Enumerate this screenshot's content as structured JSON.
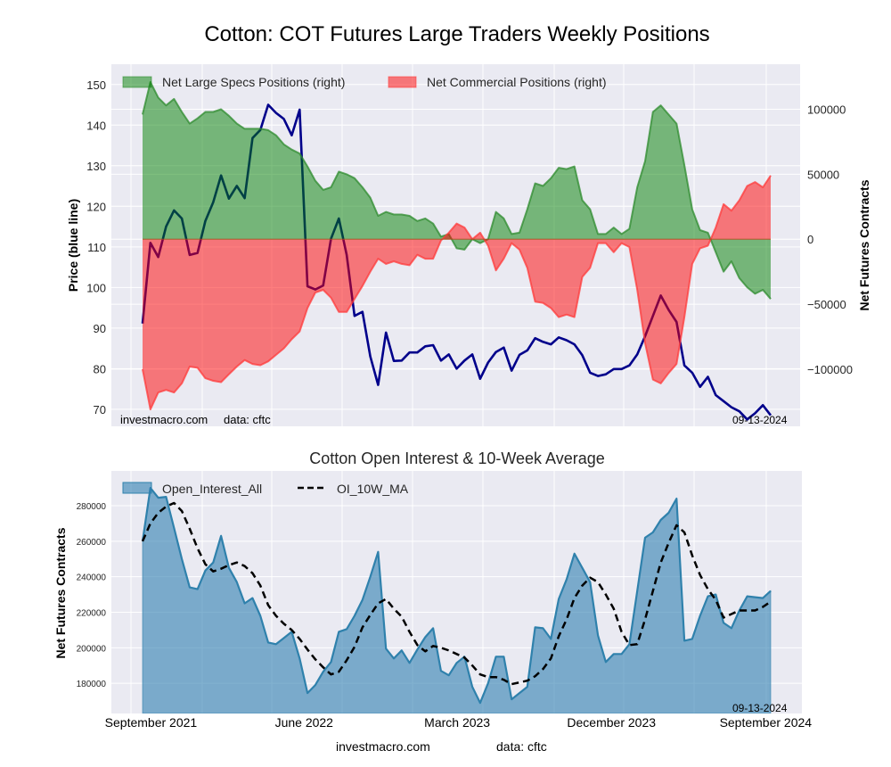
{
  "title": "Cotton: COT Futures Large Traders Weekly Positions",
  "source": "investmacro.com",
  "data_credit": "data: cftc",
  "report_date": "09-13-2024",
  "colors": {
    "plot_bg": "#eaeaf2",
    "grid": "#ffffff",
    "price_line": "#00008b",
    "specs_fill": "#008000",
    "specs_line": "#2e8b2e",
    "commercial_fill": "#ff0000",
    "commercial_line": "#ff3a3a",
    "oi_fill": "#2e7fb0",
    "oi_line": "#2f81ac",
    "ma_line": "#000000"
  },
  "chart_data": [
    {
      "type": "area+line",
      "title": "Cotton: COT Futures Large Traders Weekly Positions",
      "ylabel": "Price (blue line)",
      "y2label": "Net Futures Contracts",
      "ylim": [
        65.8,
        155
      ],
      "y2lim": [
        -144000,
        134700
      ],
      "yticks": [
        70,
        80,
        90,
        100,
        110,
        120,
        130,
        140,
        150
      ],
      "y2ticks": [
        -100000,
        -50000,
        0,
        50000,
        100000
      ],
      "grid": true,
      "legend_position": "top-left",
      "x": [
        "2021-08-17",
        "2021-08-31",
        "2021-09-14",
        "2021-09-28",
        "2021-10-12",
        "2021-10-26",
        "2021-11-09",
        "2021-11-23",
        "2021-12-07",
        "2021-12-21",
        "2022-01-04",
        "2022-01-18",
        "2022-02-01",
        "2022-02-15",
        "2022-03-01",
        "2022-03-15",
        "2022-03-29",
        "2022-04-12",
        "2022-04-26",
        "2022-05-10",
        "2022-05-24",
        "2022-06-07",
        "2022-06-21",
        "2022-07-05",
        "2022-07-19",
        "2022-08-02",
        "2022-08-16",
        "2022-08-30",
        "2022-09-13",
        "2022-09-27",
        "2022-10-11",
        "2022-10-25",
        "2022-11-08",
        "2022-11-22",
        "2022-12-06",
        "2022-12-20",
        "2023-01-03",
        "2023-01-17",
        "2023-01-31",
        "2023-02-14",
        "2023-02-28",
        "2023-03-14",
        "2023-03-28",
        "2023-04-11",
        "2023-04-25",
        "2023-05-09",
        "2023-05-23",
        "2023-06-06",
        "2023-06-20",
        "2023-07-04",
        "2023-07-18",
        "2023-08-01",
        "2023-08-15",
        "2023-08-29",
        "2023-09-12",
        "2023-09-26",
        "2023-10-10",
        "2023-10-24",
        "2023-11-07",
        "2023-11-21",
        "2023-12-05",
        "2023-12-19",
        "2024-01-02",
        "2024-01-16",
        "2024-01-30",
        "2024-02-13",
        "2024-02-27",
        "2024-03-12",
        "2024-03-26",
        "2024-04-09",
        "2024-04-23",
        "2024-05-07",
        "2024-05-21",
        "2024-06-04",
        "2024-06-18",
        "2024-07-02",
        "2024-07-16",
        "2024-07-30",
        "2024-08-13",
        "2024-08-27",
        "2024-09-10"
      ],
      "xticks": [
        {
          "date": "2021-09-01",
          "label": "September 2021"
        },
        {
          "date": "2022-06-01",
          "label": "June 2022"
        },
        {
          "date": "2023-03-01",
          "label": "March 2023"
        },
        {
          "date": "2023-12-01",
          "label": "December 2023"
        },
        {
          "date": "2024-09-01",
          "label": "September 2024"
        }
      ],
      "series": [
        {
          "name": "Net Large Specs Positions (right)",
          "axis": "right",
          "style": "fill",
          "values": [
            96000,
            121000,
            109000,
            103000,
            108000,
            98000,
            89000,
            93000,
            98000,
            98000,
            100000,
            95000,
            89000,
            85000,
            85000,
            85000,
            84000,
            80000,
            73000,
            69000,
            66000,
            56000,
            45000,
            38000,
            40000,
            52000,
            50000,
            47000,
            40000,
            32000,
            18000,
            21000,
            19000,
            19000,
            18000,
            14000,
            16000,
            12000,
            2000,
            4000,
            -7000,
            -8000,
            0,
            -3000,
            0,
            21000,
            16000,
            4000,
            5000,
            23000,
            43000,
            41000,
            47000,
            55000,
            54000,
            56000,
            30000,
            23000,
            4000,
            4000,
            9000,
            4000,
            8000,
            40000,
            60000,
            98000,
            103000,
            96000,
            89000,
            57000,
            23000,
            7000,
            5000,
            -10000,
            -25000,
            -17000,
            -30000,
            -37000,
            -42000,
            -39000,
            -46000
          ]
        },
        {
          "name": "Net Commercial Positions (right)",
          "axis": "right",
          "style": "fill",
          "values": [
            -100000,
            -131000,
            -118000,
            -116000,
            -118000,
            -111000,
            -98000,
            -99000,
            -107000,
            -109000,
            -110000,
            -104000,
            -98000,
            -93000,
            -96000,
            -97000,
            -94000,
            -89000,
            -84000,
            -77000,
            -71000,
            -53000,
            -41000,
            -39000,
            -45000,
            -56000,
            -56000,
            -46000,
            -36000,
            -25000,
            -15000,
            -19000,
            -17000,
            -19000,
            -20000,
            -12000,
            -15000,
            -15000,
            -1000,
            5000,
            12000,
            9000,
            0,
            5000,
            -5000,
            -24000,
            -15000,
            -3000,
            -8000,
            -22000,
            -48000,
            -49000,
            -53000,
            -60000,
            -58000,
            -60000,
            -29000,
            -22000,
            -3000,
            -3000,
            -10000,
            -3000,
            -6000,
            -39000,
            -80000,
            -108000,
            -111000,
            -103000,
            -96000,
            -60000,
            -19000,
            -7000,
            -5000,
            9000,
            27000,
            22000,
            30000,
            41000,
            44000,
            40000,
            49000
          ]
        },
        {
          "name": "Price",
          "axis": "left",
          "style": "line",
          "values": [
            91.1,
            111,
            107.5,
            115,
            119,
            117,
            108,
            108.5,
            116.4,
            121,
            127.6,
            121.9,
            125,
            122,
            136.8,
            138.8,
            145,
            143,
            141.5,
            137.5,
            143.8,
            100.3,
            99.5,
            100.5,
            112,
            117,
            108,
            93,
            94,
            83,
            76,
            88.9,
            81.9,
            82,
            84,
            84,
            85.5,
            85.8,
            82,
            83.5,
            80,
            82,
            83.5,
            77.5,
            81.5,
            84.1,
            85.2,
            79.5,
            83.4,
            84.5,
            87.5,
            86.6,
            86,
            87.7,
            87,
            86,
            83.3,
            79,
            78.2,
            78.6,
            79.9,
            79.9,
            80.8,
            83.5,
            88,
            93,
            98,
            94.5,
            91.5,
            80.8,
            79,
            75.5,
            78,
            73.5,
            72,
            70.5,
            69.5,
            67.5,
            69,
            71,
            68.5
          ]
        }
      ]
    },
    {
      "type": "area+line",
      "title": "Cotton Open Interest & 10-Week Average",
      "ylabel": "Net Futures Contracts",
      "ylim": [
        163000,
        299600
      ],
      "yticks": [
        180000,
        200000,
        220000,
        240000,
        260000,
        280000
      ],
      "grid": true,
      "legend_position": "top-left",
      "xticks": [
        {
          "date": "2021-09-01",
          "label": "September 2021"
        },
        {
          "date": "2022-06-01",
          "label": "June 2022"
        },
        {
          "date": "2023-03-01",
          "label": "March 2023"
        },
        {
          "date": "2023-12-01",
          "label": "December 2023"
        },
        {
          "date": "2024-09-01",
          "label": "September 2024"
        }
      ],
      "series": [
        {
          "name": "Open_Interest_All",
          "style": "fill",
          "values": [
            260000,
            290000,
            284500,
            285000,
            267500,
            250000,
            234000,
            233000,
            243500,
            248000,
            263000,
            245000,
            237000,
            225000,
            228000,
            218000,
            203000,
            202000,
            205500,
            209000,
            194000,
            174500,
            179000,
            186500,
            192000,
            209000,
            210500,
            218000,
            227000,
            240000,
            254000,
            199500,
            194000,
            198500,
            191500,
            199000,
            206000,
            211000,
            187000,
            184500,
            191500,
            195000,
            178000,
            169000,
            180000,
            195000,
            195000,
            171000,
            174500,
            178000,
            211500,
            211000,
            205000,
            227500,
            238500,
            253000,
            245000,
            237000,
            207000,
            192000,
            196500,
            196500,
            202000,
            232000,
            262000,
            265000,
            272000,
            276000,
            284000,
            204000,
            205000,
            218000,
            229000,
            230000,
            214000,
            211000,
            221000,
            229000,
            228500,
            228000,
            232000
          ]
        },
        {
          "name": "OI_10W_MA",
          "style": "dashed-line",
          "values": [
            260000,
            270000,
            276000,
            279500,
            281500,
            277000,
            267000,
            256000,
            247000,
            243000,
            244500,
            246500,
            248000,
            246000,
            242000,
            235000,
            224000,
            218000,
            213500,
            210000,
            205000,
            199000,
            193500,
            189000,
            185000,
            186500,
            193000,
            200500,
            211500,
            218500,
            225000,
            227500,
            222000,
            217500,
            209000,
            201500,
            198000,
            201000,
            200000,
            198500,
            196500,
            194500,
            190000,
            185000,
            183500,
            183500,
            182000,
            179500,
            180500,
            181500,
            184000,
            188000,
            194000,
            206500,
            216000,
            228000,
            235000,
            239500,
            237000,
            230000,
            222000,
            209000,
            201500,
            202000,
            216000,
            232000,
            248000,
            259000,
            269000,
            265000,
            252000,
            241000,
            233000,
            227000,
            217000,
            219000,
            221000,
            221000,
            221000,
            223000,
            226000
          ]
        }
      ]
    }
  ]
}
